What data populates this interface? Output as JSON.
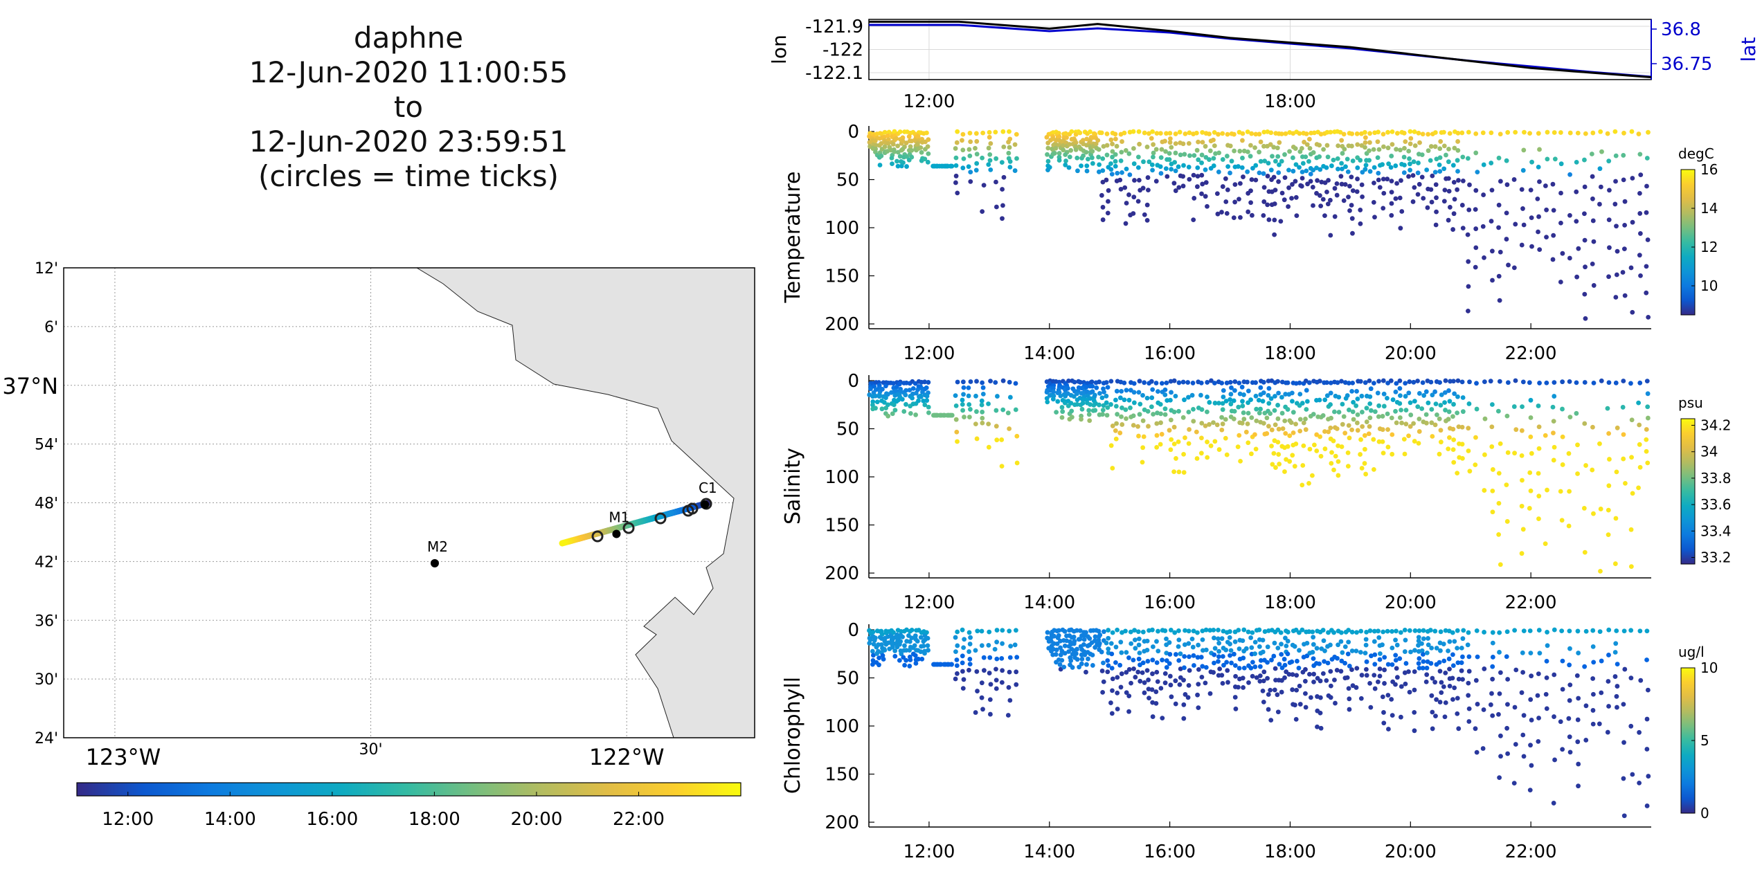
{
  "title": {
    "lines": [
      "daphne",
      "12-Jun-2020 11:00:55",
      "to",
      "12-Jun-2020 23:59:51",
      "(circles = time ticks)"
    ]
  },
  "map": {
    "lat_labels": [
      "12'",
      "6'",
      "37°N",
      "54'",
      "48'",
      "42'",
      "36'",
      "30'",
      "24'"
    ],
    "lon_labels": [
      "123°W",
      "30'",
      "122°W"
    ],
    "stations": [
      {
        "name": "M2",
        "lon": -122.375,
        "lat": 36.697
      },
      {
        "name": "M1",
        "lon": -122.02,
        "lat": 36.747
      },
      {
        "name": "C1",
        "lon": -121.847,
        "lat": 36.797
      }
    ],
    "colorbar_ticks": [
      "12:00",
      "14:00",
      "16:00",
      "18:00",
      "20:00",
      "22:00"
    ],
    "colors": {
      "land": "#e3e3e3",
      "grid": "#888888"
    }
  },
  "chart_data": [
    {
      "type": "line",
      "title": "",
      "x_range": [
        "11:00",
        "24:00"
      ],
      "x_ticks": [
        "12:00",
        "18:00"
      ],
      "ylabel": "lon",
      "ylabel_right": "lat",
      "y_ticks_left": [
        "-121.9",
        "-122",
        "-122.1"
      ],
      "y_ticks_right": [
        "36.8",
        "36.75"
      ],
      "ylim": [
        -122.13,
        -121.87
      ],
      "ylim_right": [
        36.727,
        36.814
      ],
      "series": [
        {
          "name": "lon",
          "color": "#000000",
          "x": [
            11.0,
            12.5,
            13.0,
            14.0,
            14.8,
            16.0,
            17.0,
            18.0,
            19.0,
            20.0,
            21.0,
            22.0,
            23.0,
            24.0
          ],
          "values": [
            -121.88,
            -121.88,
            -121.89,
            -121.91,
            -121.89,
            -121.92,
            -121.95,
            -121.97,
            -121.99,
            -122.02,
            -122.05,
            -122.08,
            -122.1,
            -122.12
          ]
        },
        {
          "name": "lat",
          "color": "#0000cc",
          "x": [
            11.0,
            12.5,
            13.0,
            14.0,
            14.8,
            16.0,
            17.0,
            18.0,
            19.0,
            20.0,
            21.0,
            22.0,
            23.0,
            24.0
          ],
          "values": [
            36.806,
            36.806,
            36.803,
            36.797,
            36.801,
            36.795,
            36.786,
            36.779,
            36.772,
            36.763,
            36.754,
            36.746,
            36.738,
            36.731
          ]
        }
      ]
    },
    {
      "type": "scatter",
      "ylabel": "Temperature",
      "x_range": [
        "11:00",
        "24:00"
      ],
      "x_ticks": [
        "12:00",
        "14:00",
        "16:00",
        "18:00",
        "20:00",
        "22:00"
      ],
      "y_ticks": [
        "0",
        "50",
        "100",
        "150",
        "200"
      ],
      "ylim": [
        0,
        205
      ],
      "y_reversed": true,
      "colorbar": {
        "unit": "degC",
        "ticks": [
          "16",
          "14",
          "12",
          "10"
        ],
        "range": [
          8.5,
          16
        ]
      }
    },
    {
      "type": "scatter",
      "ylabel": "Salinity",
      "x_range": [
        "11:00",
        "24:00"
      ],
      "x_ticks": [
        "12:00",
        "14:00",
        "16:00",
        "18:00",
        "20:00",
        "22:00"
      ],
      "y_ticks": [
        "0",
        "50",
        "100",
        "150",
        "200"
      ],
      "ylim": [
        0,
        205
      ],
      "y_reversed": true,
      "colorbar": {
        "unit": "psu",
        "ticks": [
          "34.2",
          "34",
          "33.8",
          "33.6",
          "33.4",
          "33.2"
        ],
        "range": [
          33.15,
          34.25
        ]
      }
    },
    {
      "type": "scatter",
      "ylabel": "Chlorophyll",
      "x_range": [
        "11:00",
        "24:00"
      ],
      "x_ticks": [
        "12:00",
        "14:00",
        "16:00",
        "18:00",
        "20:00",
        "22:00"
      ],
      "y_ticks": [
        "0",
        "50",
        "100",
        "150",
        "200"
      ],
      "ylim": [
        0,
        205
      ],
      "y_reversed": true,
      "colorbar": {
        "unit": "ug/l",
        "ticks": [
          "10",
          "5",
          "0"
        ],
        "range": [
          0,
          10
        ]
      }
    }
  ]
}
